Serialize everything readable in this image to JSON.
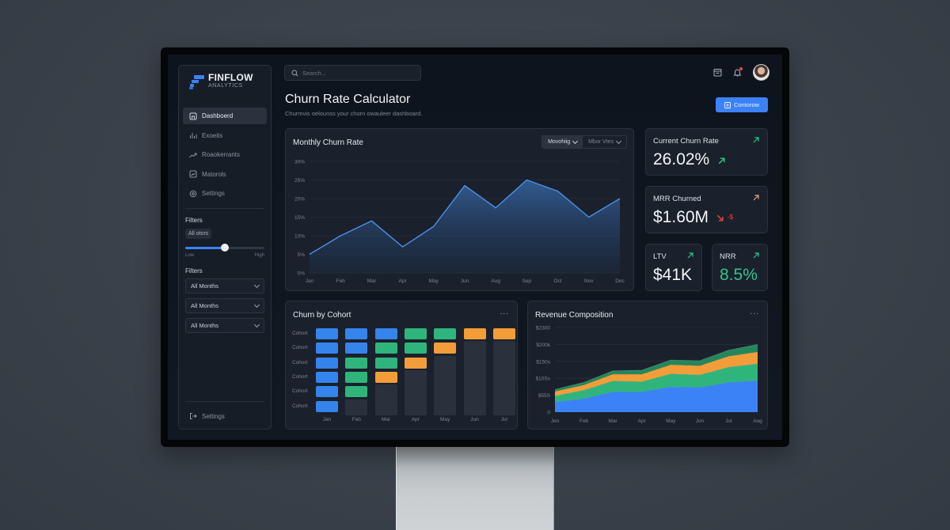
{
  "brand": {
    "name": "FINFLOW",
    "sub": "ANALYTICS"
  },
  "sidebar": {
    "items": [
      {
        "label": "Dashboerd",
        "icon": "dashboard-icon",
        "active": true
      },
      {
        "label": "Exoeits",
        "icon": "bar-chart-icon",
        "active": false
      },
      {
        "label": "Roaokerrants",
        "icon": "trend-icon",
        "active": false
      },
      {
        "label": "Matorols",
        "icon": "checkbox-chart-icon",
        "active": false
      },
      {
        "label": "Settings",
        "icon": "gear-icon",
        "active": false
      }
    ],
    "filters_label": "Filters",
    "chip_label": "All otors",
    "slider": {
      "low": "Low",
      "high": "High",
      "value_percent": 50
    },
    "filters2_label": "Filters",
    "selects": [
      "All Months",
      "All Months",
      "All Months"
    ],
    "bottom_item": "Settings"
  },
  "header": {
    "search_placeholder": "Search...",
    "title": "Churn Rate Calculator",
    "subtitle": "Churmvis oelounss your chorn owauleer dashboard.",
    "cta_label": "Contorow"
  },
  "monthly_chart": {
    "title": "Monthly Churn Rate",
    "toggle": [
      "Movohiig",
      "Mbor Vtes"
    ]
  },
  "kpis": [
    {
      "label": "Current Churn Rate",
      "value": "26.02%",
      "trend": "up",
      "color": "#f3f5f8",
      "trend_color": "#34c38f"
    },
    {
      "label": "MRR Churned",
      "value": "$1.60M",
      "trend": "down",
      "extra": "-$",
      "color": "#f3f5f8",
      "trend_color": "#ef4444",
      "corner_color": "#e8a77a"
    },
    {
      "label": "LTV",
      "value": "$41K",
      "trend": "up",
      "color": "#f3f5f8",
      "trend_color": "#34c38f"
    },
    {
      "label": "NRR",
      "value": "8.5%",
      "trend": "up",
      "color": "#34c38f",
      "trend_color": "#34c38f"
    }
  ],
  "cohort_card": {
    "title": "Churn by Cohort",
    "more": "..."
  },
  "revenue_card": {
    "title": "Revenue Composition",
    "more": "..."
  },
  "colors": {
    "accent": "#3b82f6",
    "green": "#2fb57c",
    "orange": "#f29d38",
    "dark_green": "#23875b",
    "danger": "#ef4444"
  },
  "chart_data": [
    {
      "type": "area",
      "title": "Monthly Churn Rate",
      "categories": [
        "Jan",
        "Feb",
        "Mar",
        "Apr",
        "May",
        "Jun",
        "Aug",
        "Sep",
        "Oct",
        "Nov",
        "Dec"
      ],
      "values": [
        5,
        10,
        14,
        7,
        12.5,
        23.5,
        17.5,
        25,
        22,
        15,
        20
      ],
      "yticks": [
        "0%",
        "5%",
        "10%",
        "15%",
        "20%",
        "25%",
        "30%"
      ],
      "ylim": [
        0,
        30
      ],
      "grid": true
    },
    {
      "type": "heatmap",
      "title": "Churn by Cohort",
      "categories": [
        "Jan",
        "Feb",
        "Mar",
        "Apr",
        "May",
        "Jun",
        "Jul"
      ],
      "row_labels": [
        "Cohort",
        "Cohort",
        "Cohort",
        "Cohort",
        "Cohort",
        "Cohort"
      ],
      "columns": [
        [
          "blue",
          "blue",
          "blue",
          "blue",
          "blue",
          "blue"
        ],
        [
          "blue",
          "blue",
          "green",
          "green",
          "green",
          ""
        ],
        [
          "blue",
          "green",
          "green",
          "orange",
          "",
          ""
        ],
        [
          "green",
          "green",
          "orange",
          "",
          "",
          ""
        ],
        [
          "green",
          "orange",
          "",
          "",
          "",
          ""
        ],
        [
          "orange",
          "",
          "",
          "",
          "",
          ""
        ],
        [
          "orange",
          "",
          "",
          "",
          "",
          ""
        ]
      ]
    },
    {
      "type": "area",
      "stacked": true,
      "title": "Revenue Composition",
      "categories": [
        "Jen",
        "Feb",
        "Mar",
        "Apr",
        "May",
        "Jon",
        "Jol",
        "Aog"
      ],
      "yticks": [
        "0",
        "$55S",
        "$10Ss",
        "$150s",
        "$200k",
        "$2300"
      ],
      "ylim": [
        0,
        250
      ],
      "series": [
        {
          "name": "Base",
          "color": "#3b82f6",
          "values": [
            30,
            40,
            60,
            60,
            75,
            73,
            88,
            93
          ]
        },
        {
          "name": "Expansion",
          "color": "#2fb57c",
          "values": [
            18,
            25,
            32,
            30,
            38,
            37,
            45,
            50
          ]
        },
        {
          "name": "Add-ons",
          "color": "#f29d38",
          "values": [
            13,
            15,
            20,
            22,
            27,
            27,
            32,
            35
          ]
        },
        {
          "name": "Other",
          "color": "#23875b",
          "values": [
            6,
            8,
            10,
            12,
            14,
            15,
            18,
            22
          ]
        }
      ]
    }
  ]
}
